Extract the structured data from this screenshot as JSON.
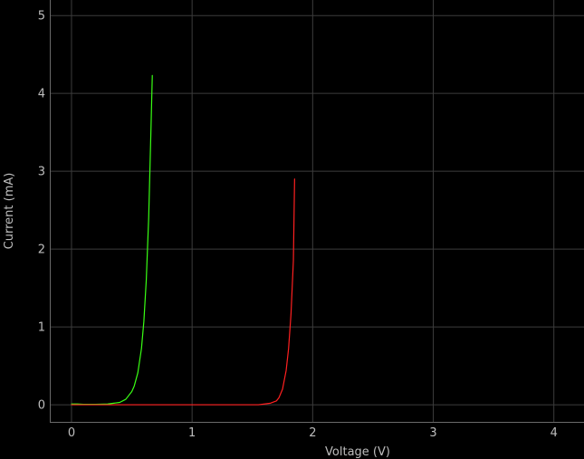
{
  "chart_data": {
    "type": "line",
    "title": "",
    "xlabel": "Voltage (V)",
    "ylabel": "Current (mA)",
    "xlim": [
      -0.18,
      4.25
    ],
    "ylim": [
      -0.22,
      5.2
    ],
    "xticks": [
      0,
      1,
      2,
      3,
      4
    ],
    "yticks": [
      0,
      1,
      2,
      3,
      4,
      5
    ],
    "grid": true,
    "background": "#000000",
    "grid_color": "#3c3c3c",
    "text_color": "#bdbdbd",
    "series": [
      {
        "color": "#39ff14",
        "x": [
          0.0,
          0.05,
          0.1,
          0.2,
          0.3,
          0.35,
          0.4,
          0.45,
          0.5,
          0.52,
          0.55,
          0.58,
          0.6,
          0.62,
          0.64,
          0.66,
          0.67
        ],
        "values": [
          0.01,
          0.01,
          0.005,
          0.005,
          0.01,
          0.02,
          0.03,
          0.07,
          0.17,
          0.24,
          0.41,
          0.72,
          1.07,
          1.6,
          2.4,
          3.6,
          4.23
        ]
      },
      {
        "color": "#ff2020",
        "x": [
          0.0,
          0.5,
          1.0,
          1.5,
          1.55,
          1.6,
          1.65,
          1.7,
          1.72,
          1.75,
          1.78,
          1.8,
          1.82,
          1.84,
          1.85
        ],
        "values": [
          0.0,
          0.0,
          0.0,
          0.0,
          0.0,
          0.01,
          0.02,
          0.05,
          0.09,
          0.2,
          0.44,
          0.72,
          1.16,
          1.85,
          2.9
        ]
      }
    ]
  }
}
